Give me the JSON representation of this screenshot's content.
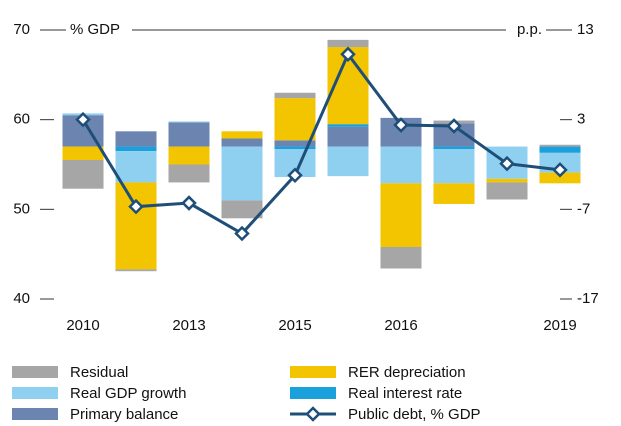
{
  "chart_data": {
    "type": "bar",
    "ylabel": "% GDP",
    "y2label": "p.p.",
    "categories": [
      "2010",
      null,
      "2013",
      null,
      "2015",
      null,
      "2016",
      null,
      null,
      "2019"
    ],
    "ylim": [
      40,
      70
    ],
    "yticks": [
      70,
      60,
      50,
      40
    ],
    "y2lim": [
      -17,
      13
    ],
    "y2ticks": [
      13,
      3,
      -7,
      -17
    ],
    "series": [
      {
        "name": "Residual",
        "color": "#a6a6a6",
        "axis": "y2",
        "values": [
          -3.2,
          -0.2,
          -2.0,
          -2.0,
          0.6,
          0.8,
          -2.4,
          0.3,
          -1.9,
          0.2
        ]
      },
      {
        "name": "RER depreciation",
        "color": "#f2c500",
        "axis": "y2",
        "values": [
          -1.5,
          -9.7,
          -2.0,
          0.8,
          4.7,
          8.6,
          -7.1,
          -2.3,
          -0.4,
          -1.2
        ]
      },
      {
        "name": "Real GDP growth",
        "color": "#8fd0f0",
        "axis": "y2",
        "values": [
          0.2,
          -3.5,
          0.1,
          -6.0,
          -3.1,
          -3.3,
          -4.1,
          -3.8,
          -3.6,
          -2.2
        ]
      },
      {
        "name": "Real interest rate",
        "color": "#1aa0dc",
        "axis": "y2",
        "values": [
          0,
          -0.5,
          0,
          0,
          -0.3,
          0.3,
          0,
          -0.3,
          0,
          -0.7
        ]
      },
      {
        "name": "Primary balance",
        "color": "#6b85b0",
        "axis": "y2",
        "values": [
          3.5,
          1.7,
          2.7,
          0.9,
          0.7,
          2.2,
          3.2,
          2.6,
          0,
          0
        ]
      },
      {
        "name": "Public debt, % GDP",
        "color": "#1f4e79",
        "axis": "y",
        "type": "line",
        "values": [
          60.0,
          50.3,
          50.7,
          47.3,
          53.8,
          67.3,
          59.4,
          59.3,
          55.1,
          54.4
        ]
      }
    ]
  }
}
